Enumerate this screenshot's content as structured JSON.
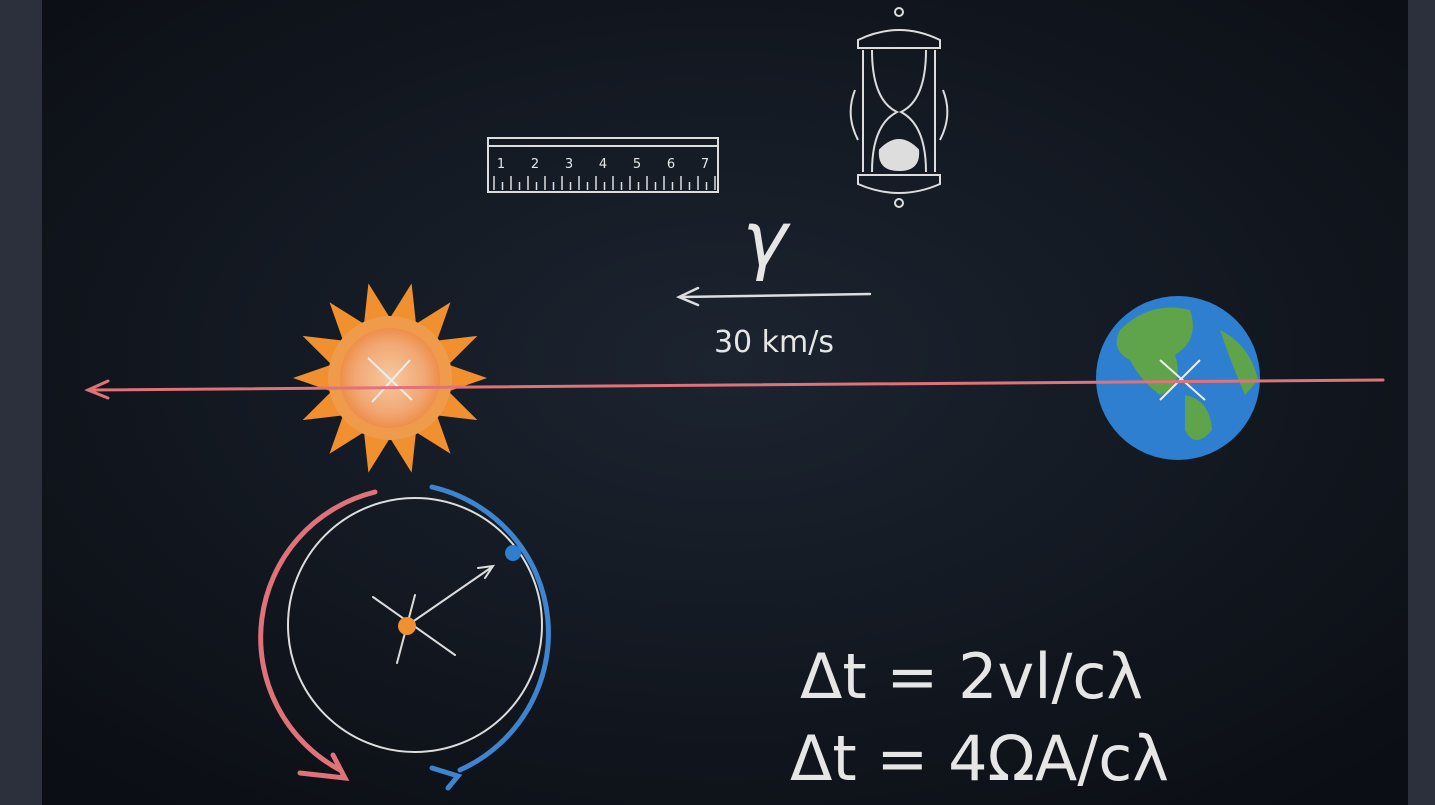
{
  "ruler": {
    "numbers": [
      "1",
      "2",
      "3",
      "4",
      "5",
      "6",
      "7"
    ]
  },
  "labels": {
    "gamma": "γ",
    "speed": "30 km/s"
  },
  "equations": [
    "Δt = 2vl/cλ",
    "Δt = 4ΩA/cλ"
  ]
}
